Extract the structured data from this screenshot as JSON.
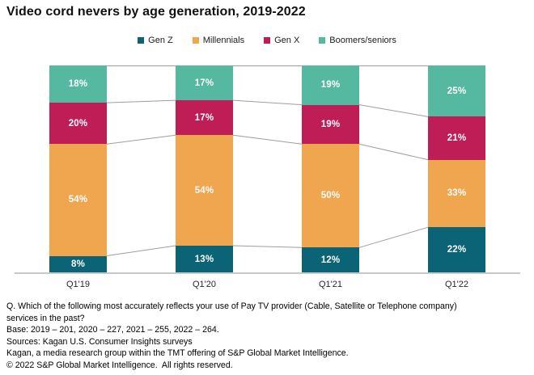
{
  "title": "Video cord nevers by age generation, 2019-2022",
  "legend": [
    {
      "label": "Gen Z",
      "color": "#0A6476"
    },
    {
      "label": "Millennials",
      "color": "#F0A64E"
    },
    {
      "label": "Gen X",
      "color": "#BE1E55"
    },
    {
      "label": "Boomers/seniors",
      "color": "#54B9A0"
    }
  ],
  "chart_data": {
    "type": "bar",
    "stacked": true,
    "normalized_height": true,
    "title": "Video cord nevers by age generation, 2019-2022",
    "xlabel": "",
    "ylabel": "",
    "grid": false,
    "legend_position": "top",
    "categories": [
      "Q1'19",
      "Q1'20",
      "Q1'21",
      "Q1'22"
    ],
    "series": [
      {
        "name": "Gen Z",
        "color": "#0A6476",
        "values": [
          8,
          13,
          12,
          22
        ]
      },
      {
        "name": "Millennials",
        "color": "#F0A64E",
        "values": [
          54,
          54,
          50,
          33
        ]
      },
      {
        "name": "Gen X",
        "color": "#BE1E55",
        "values": [
          20,
          17,
          19,
          21
        ]
      },
      {
        "name": "Boomers/seniors",
        "color": "#54B9A0",
        "values": [
          18,
          17,
          19,
          25
        ]
      }
    ],
    "value_label_suffix": "%",
    "connector_lines": true,
    "connector_color": "#9e9e9e",
    "axis_color": "#c8c8c8"
  },
  "footer": {
    "lines": [
      "Q. Which of the following most accurately reflects your use of Pay TV provider (Cable, Satellite or Telephone company)",
      "services in the past?",
      "Base: 2019 – 201, 2020 – 227, 2021 – 255, 2022 – 264.",
      "Sources: Kagan U.S. Consumer Insights surveys",
      "Kagan, a media research group within the TMT offering of S&P Global Market Intelligence.",
      "© 2022 S&P Global Market Intelligence.  All rights reserved."
    ]
  }
}
